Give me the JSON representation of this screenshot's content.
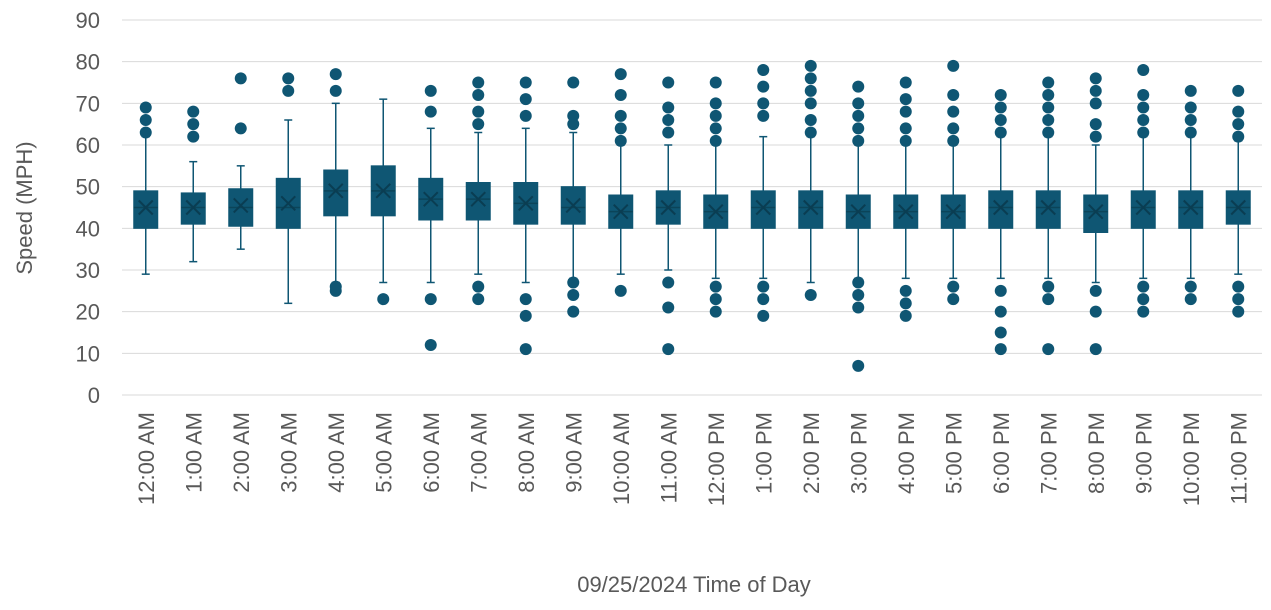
{
  "chart_data": {
    "type": "box",
    "title": "",
    "xlabel": "09/25/2024 Time of Day",
    "ylabel": "Speed (MPH)",
    "ylim": [
      0,
      90
    ],
    "yticks": [
      0,
      10,
      20,
      30,
      40,
      50,
      60,
      70,
      80,
      90
    ],
    "grid": true,
    "legend": "none",
    "colors": {
      "box": "#0f5673",
      "grid": "#d9d9d9",
      "text": "#595959"
    },
    "categories": [
      "12:00 AM",
      "1:00 AM",
      "2:00 AM",
      "3:00 AM",
      "4:00 AM",
      "5:00 AM",
      "6:00 AM",
      "7:00 AM",
      "8:00 AM",
      "9:00 AM",
      "10:00 AM",
      "11:00 AM",
      "12:00 PM",
      "1:00 PM",
      "2:00 PM",
      "3:00 PM",
      "4:00 PM",
      "5:00 PM",
      "6:00 PM",
      "7:00 PM",
      "8:00 PM",
      "9:00 PM",
      "10:00 PM",
      "11:00 PM"
    ],
    "boxes": [
      {
        "category": "12:00 AM",
        "whisker_low": 29,
        "q1": 40,
        "median": 45,
        "mean": 45,
        "q3": 49,
        "whisker_high": 62,
        "outliers": [
          63,
          66,
          69
        ]
      },
      {
        "category": "1:00 AM",
        "whisker_low": 32,
        "q1": 41,
        "median": 45,
        "mean": 45,
        "q3": 48.5,
        "whisker_high": 56,
        "outliers": [
          62,
          65,
          68
        ]
      },
      {
        "category": "2:00 AM",
        "whisker_low": 35,
        "q1": 40.5,
        "median": 45,
        "mean": 45.5,
        "q3": 49.5,
        "whisker_high": 55,
        "outliers": [
          64,
          76
        ]
      },
      {
        "category": "3:00 AM",
        "whisker_low": 22,
        "q1": 40,
        "median": 45,
        "mean": 46,
        "q3": 52,
        "whisker_high": 66,
        "outliers": [
          73,
          76
        ]
      },
      {
        "category": "4:00 AM",
        "whisker_low": 27,
        "q1": 43,
        "median": 49,
        "mean": 49,
        "q3": 54,
        "whisker_high": 70,
        "outliers": [
          25,
          26,
          73,
          77
        ]
      },
      {
        "category": "5:00 AM",
        "whisker_low": 27,
        "q1": 43,
        "median": 49,
        "mean": 49,
        "q3": 55,
        "whisker_high": 71,
        "outliers": [
          23
        ]
      },
      {
        "category": "6:00 AM",
        "whisker_low": 27,
        "q1": 42,
        "median": 47,
        "mean": 47,
        "q3": 52,
        "whisker_high": 64,
        "outliers": [
          12,
          23,
          68,
          73
        ]
      },
      {
        "category": "7:00 AM",
        "whisker_low": 29,
        "q1": 42,
        "median": 47,
        "mean": 47,
        "q3": 51,
        "whisker_high": 63,
        "outliers": [
          23,
          26,
          65,
          68,
          72,
          75
        ]
      },
      {
        "category": "8:00 AM",
        "whisker_low": 27,
        "q1": 41,
        "median": 46,
        "mean": 46,
        "q3": 51,
        "whisker_high": 64,
        "outliers": [
          11,
          19,
          23,
          67,
          71,
          75
        ]
      },
      {
        "category": "9:00 AM",
        "whisker_low": 28,
        "q1": 41,
        "median": 45,
        "mean": 45.5,
        "q3": 50,
        "whisker_high": 63,
        "outliers": [
          20,
          24,
          27,
          65,
          67,
          75
        ]
      },
      {
        "category": "10:00 AM",
        "whisker_low": 29,
        "q1": 40,
        "median": 44,
        "mean": 44,
        "q3": 48,
        "whisker_high": 60,
        "outliers": [
          25,
          61,
          64,
          67,
          72,
          77
        ]
      },
      {
        "category": "11:00 AM",
        "whisker_low": 30,
        "q1": 41,
        "median": 45,
        "mean": 45,
        "q3": 49,
        "whisker_high": 60,
        "outliers": [
          11,
          21,
          27,
          63,
          66,
          69,
          75
        ]
      },
      {
        "category": "12:00 PM",
        "whisker_low": 28,
        "q1": 40,
        "median": 44,
        "mean": 44,
        "q3": 48,
        "whisker_high": 60,
        "outliers": [
          20,
          23,
          26,
          61,
          64,
          67,
          70,
          75
        ]
      },
      {
        "category": "1:00 PM",
        "whisker_low": 28,
        "q1": 40,
        "median": 45,
        "mean": 45,
        "q3": 49,
        "whisker_high": 62,
        "outliers": [
          19,
          23,
          26,
          67,
          70,
          74,
          78
        ]
      },
      {
        "category": "2:00 PM",
        "whisker_low": 27,
        "q1": 40,
        "median": 45,
        "mean": 45,
        "q3": 49,
        "whisker_high": 62,
        "outliers": [
          24,
          63,
          66,
          70,
          73,
          76,
          79
        ]
      },
      {
        "category": "3:00 PM",
        "whisker_low": 28,
        "q1": 40,
        "median": 44,
        "mean": 44,
        "q3": 48,
        "whisker_high": 60,
        "outliers": [
          7,
          21,
          24,
          27,
          61,
          64,
          67,
          70,
          74
        ]
      },
      {
        "category": "4:00 PM",
        "whisker_low": 28,
        "q1": 40,
        "median": 44,
        "mean": 44,
        "q3": 48,
        "whisker_high": 60,
        "outliers": [
          19,
          22,
          25,
          61,
          64,
          68,
          71,
          75
        ]
      },
      {
        "category": "5:00 PM",
        "whisker_low": 28,
        "q1": 40,
        "median": 44,
        "mean": 44,
        "q3": 48,
        "whisker_high": 60,
        "outliers": [
          23,
          26,
          61,
          64,
          68,
          72,
          79
        ]
      },
      {
        "category": "6:00 PM",
        "whisker_low": 28,
        "q1": 40,
        "median": 45,
        "mean": 45,
        "q3": 49,
        "whisker_high": 62,
        "outliers": [
          11,
          15,
          20,
          25,
          63,
          66,
          69,
          72
        ]
      },
      {
        "category": "7:00 PM",
        "whisker_low": 28,
        "q1": 40,
        "median": 45,
        "mean": 45,
        "q3": 49,
        "whisker_high": 62,
        "outliers": [
          11,
          23,
          26,
          63,
          66,
          69,
          72,
          75
        ]
      },
      {
        "category": "8:00 PM",
        "whisker_low": 27,
        "q1": 39,
        "median": 44,
        "mean": 44,
        "q3": 48,
        "whisker_high": 60,
        "outliers": [
          11,
          20,
          25,
          62,
          65,
          70,
          73,
          76
        ]
      },
      {
        "category": "9:00 PM",
        "whisker_low": 28,
        "q1": 40,
        "median": 45,
        "mean": 45,
        "q3": 49,
        "whisker_high": 62,
        "outliers": [
          20,
          23,
          26,
          63,
          66,
          69,
          72,
          78
        ]
      },
      {
        "category": "10:00 PM",
        "whisker_low": 28,
        "q1": 40,
        "median": 45,
        "mean": 45,
        "q3": 49,
        "whisker_high": 62,
        "outliers": [
          23,
          26,
          63,
          66,
          69,
          73
        ]
      },
      {
        "category": "11:00 PM",
        "whisker_low": 29,
        "q1": 41,
        "median": 45,
        "mean": 45,
        "q3": 49,
        "whisker_high": 61,
        "outliers": [
          20,
          23,
          26,
          62,
          65,
          68,
          73
        ]
      }
    ]
  }
}
